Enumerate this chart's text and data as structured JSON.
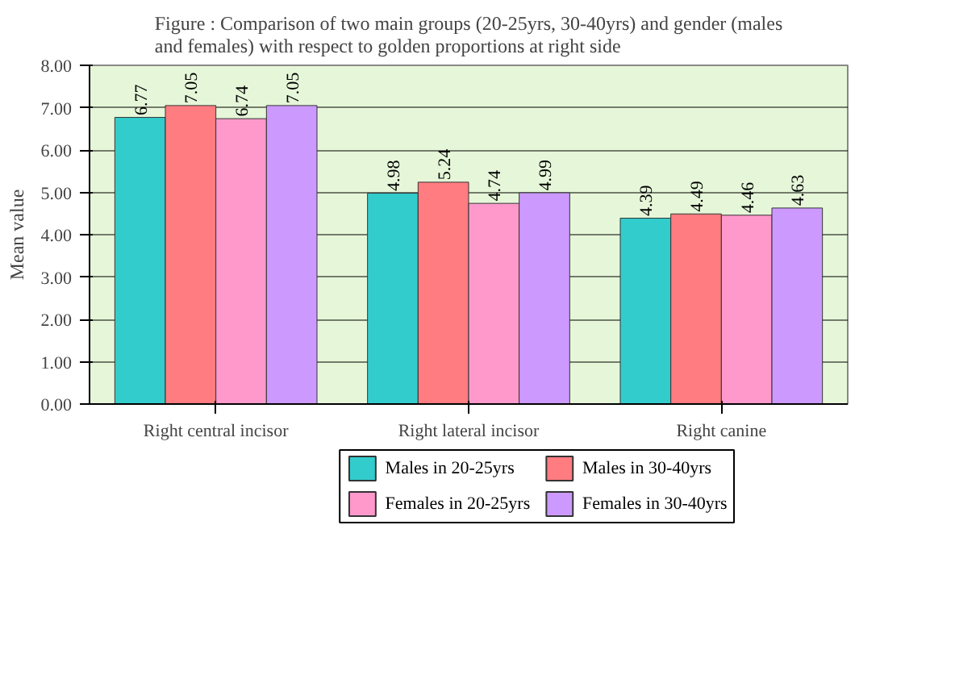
{
  "chart_data": {
    "type": "bar",
    "title": "Figure : Comparison of two main groups (20-25yrs, 30-40yrs) and gender (males and females) with respect to golden proportions at right side",
    "ylabel": "Mean value",
    "categories": [
      "Right central incisor",
      "Right lateral incisor",
      "Right canine"
    ],
    "series": [
      {
        "name": "Males in 20-25yrs",
        "color": "#33cccc",
        "values": [
          6.77,
          4.98,
          4.39
        ]
      },
      {
        "name": "Males in 30-40yrs",
        "color": "#ff7c80",
        "values": [
          7.05,
          5.24,
          4.49
        ]
      },
      {
        "name": "Females in 20-25yrs",
        "color": "#ff99cc",
        "values": [
          6.74,
          4.74,
          4.46
        ]
      },
      {
        "name": "Females in 30-40yrs",
        "color": "#cc99ff",
        "values": [
          7.05,
          4.99,
          4.63
        ]
      }
    ],
    "ylim": [
      0,
      8
    ],
    "yticks": [
      {
        "value": 0,
        "label": "0.00"
      },
      {
        "value": 1,
        "label": "1.00"
      },
      {
        "value": 2,
        "label": "2.00"
      },
      {
        "value": 3,
        "label": "3.00"
      },
      {
        "value": 4,
        "label": "4.00"
      },
      {
        "value": 5,
        "label": "5.00"
      },
      {
        "value": 6,
        "label": "6.00"
      },
      {
        "value": 7,
        "label": "7.00"
      },
      {
        "value": 8,
        "label": "8.00"
      }
    ],
    "grid": "y",
    "legend": "bottom",
    "data_labels": true
  }
}
